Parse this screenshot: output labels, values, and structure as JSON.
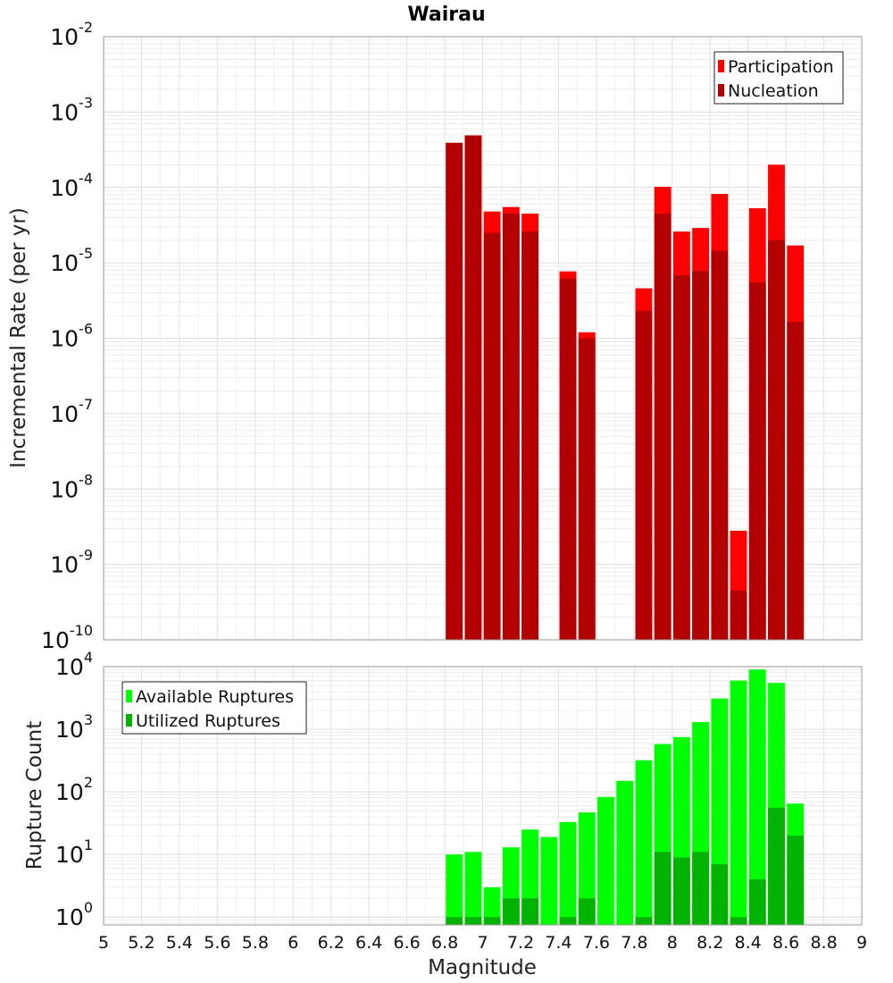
{
  "chart_data": [
    {
      "type": "bar",
      "title": "Wairau",
      "ylabel": "Incremental Rate (per yr)",
      "yscale": "log",
      "ylim": [
        1e-10,
        0.01
      ],
      "xlim": [
        5,
        9
      ],
      "legend_position": "top-right",
      "x": [
        6.85,
        6.95,
        7.05,
        7.15,
        7.25,
        7.45,
        7.55,
        7.85,
        7.95,
        8.05,
        8.15,
        8.25,
        8.35,
        8.45,
        8.55,
        8.65
      ],
      "series": [
        {
          "name": "Participation",
          "color": "#ff0000",
          "values": [
            0.00039,
            0.00049,
            4.8e-05,
            5.5e-05,
            4.5e-05,
            7.7e-06,
            1.2e-06,
            4.6e-06,
            0.000102,
            2.6e-05,
            2.9e-05,
            8.2e-05,
            2.8e-09,
            5.3e-05,
            0.0002,
            1.7e-05
          ]
        },
        {
          "name": "Nucleation",
          "color": "#b30000",
          "values": [
            0.00039,
            0.00049,
            2.5e-05,
            4.5e-05,
            2.6e-05,
            6.2e-06,
            1e-06,
            2.3e-06,
            4.5e-05,
            6.8e-06,
            7.8e-06,
            1.45e-05,
            4.5e-10,
            5.5e-06,
            2e-05,
            1.65e-06
          ]
        }
      ]
    },
    {
      "type": "bar",
      "xlabel": "Magnitude",
      "ylabel": "Rupture Count",
      "yscale": "log",
      "ylim": [
        0.75,
        10000
      ],
      "xlim": [
        5,
        9
      ],
      "legend_position": "top-left",
      "x": [
        6.85,
        6.95,
        7.05,
        7.15,
        7.25,
        7.35,
        7.45,
        7.55,
        7.65,
        7.75,
        7.85,
        7.95,
        8.05,
        8.15,
        8.25,
        8.35,
        8.45,
        8.55,
        8.65
      ],
      "series": [
        {
          "name": "Available Ruptures",
          "color": "#00ff00",
          "values": [
            10,
            11,
            3,
            13,
            25,
            19,
            33,
            47,
            83,
            150,
            320,
            580,
            750,
            1300,
            3100,
            6000,
            9000,
            5500,
            65
          ]
        },
        {
          "name": "Utilized Ruptures",
          "color": "#00b300",
          "values": [
            1,
            1,
            1,
            2,
            2,
            0,
            1,
            2,
            0,
            0,
            1,
            11,
            9,
            11,
            7,
            1,
            4,
            56,
            20
          ]
        }
      ]
    }
  ],
  "x_ticks": [
    "5",
    "5.2",
    "5.4",
    "5.6",
    "5.8",
    "6",
    "6.2",
    "6.4",
    "6.6",
    "6.8",
    "7",
    "7.2",
    "7.4",
    "7.6",
    "7.8",
    "8",
    "8.2",
    "8.4",
    "8.6",
    "8.8",
    "9"
  ],
  "top_y_ticks": {
    "base": "10",
    "exponents": [
      "-2",
      "-3",
      "-4",
      "-5",
      "-6",
      "-7",
      "-8",
      "-9",
      "-10"
    ]
  },
  "bottom_y_ticks": {
    "base": "10",
    "exponents": [
      "4",
      "3",
      "2",
      "1",
      "0"
    ]
  }
}
